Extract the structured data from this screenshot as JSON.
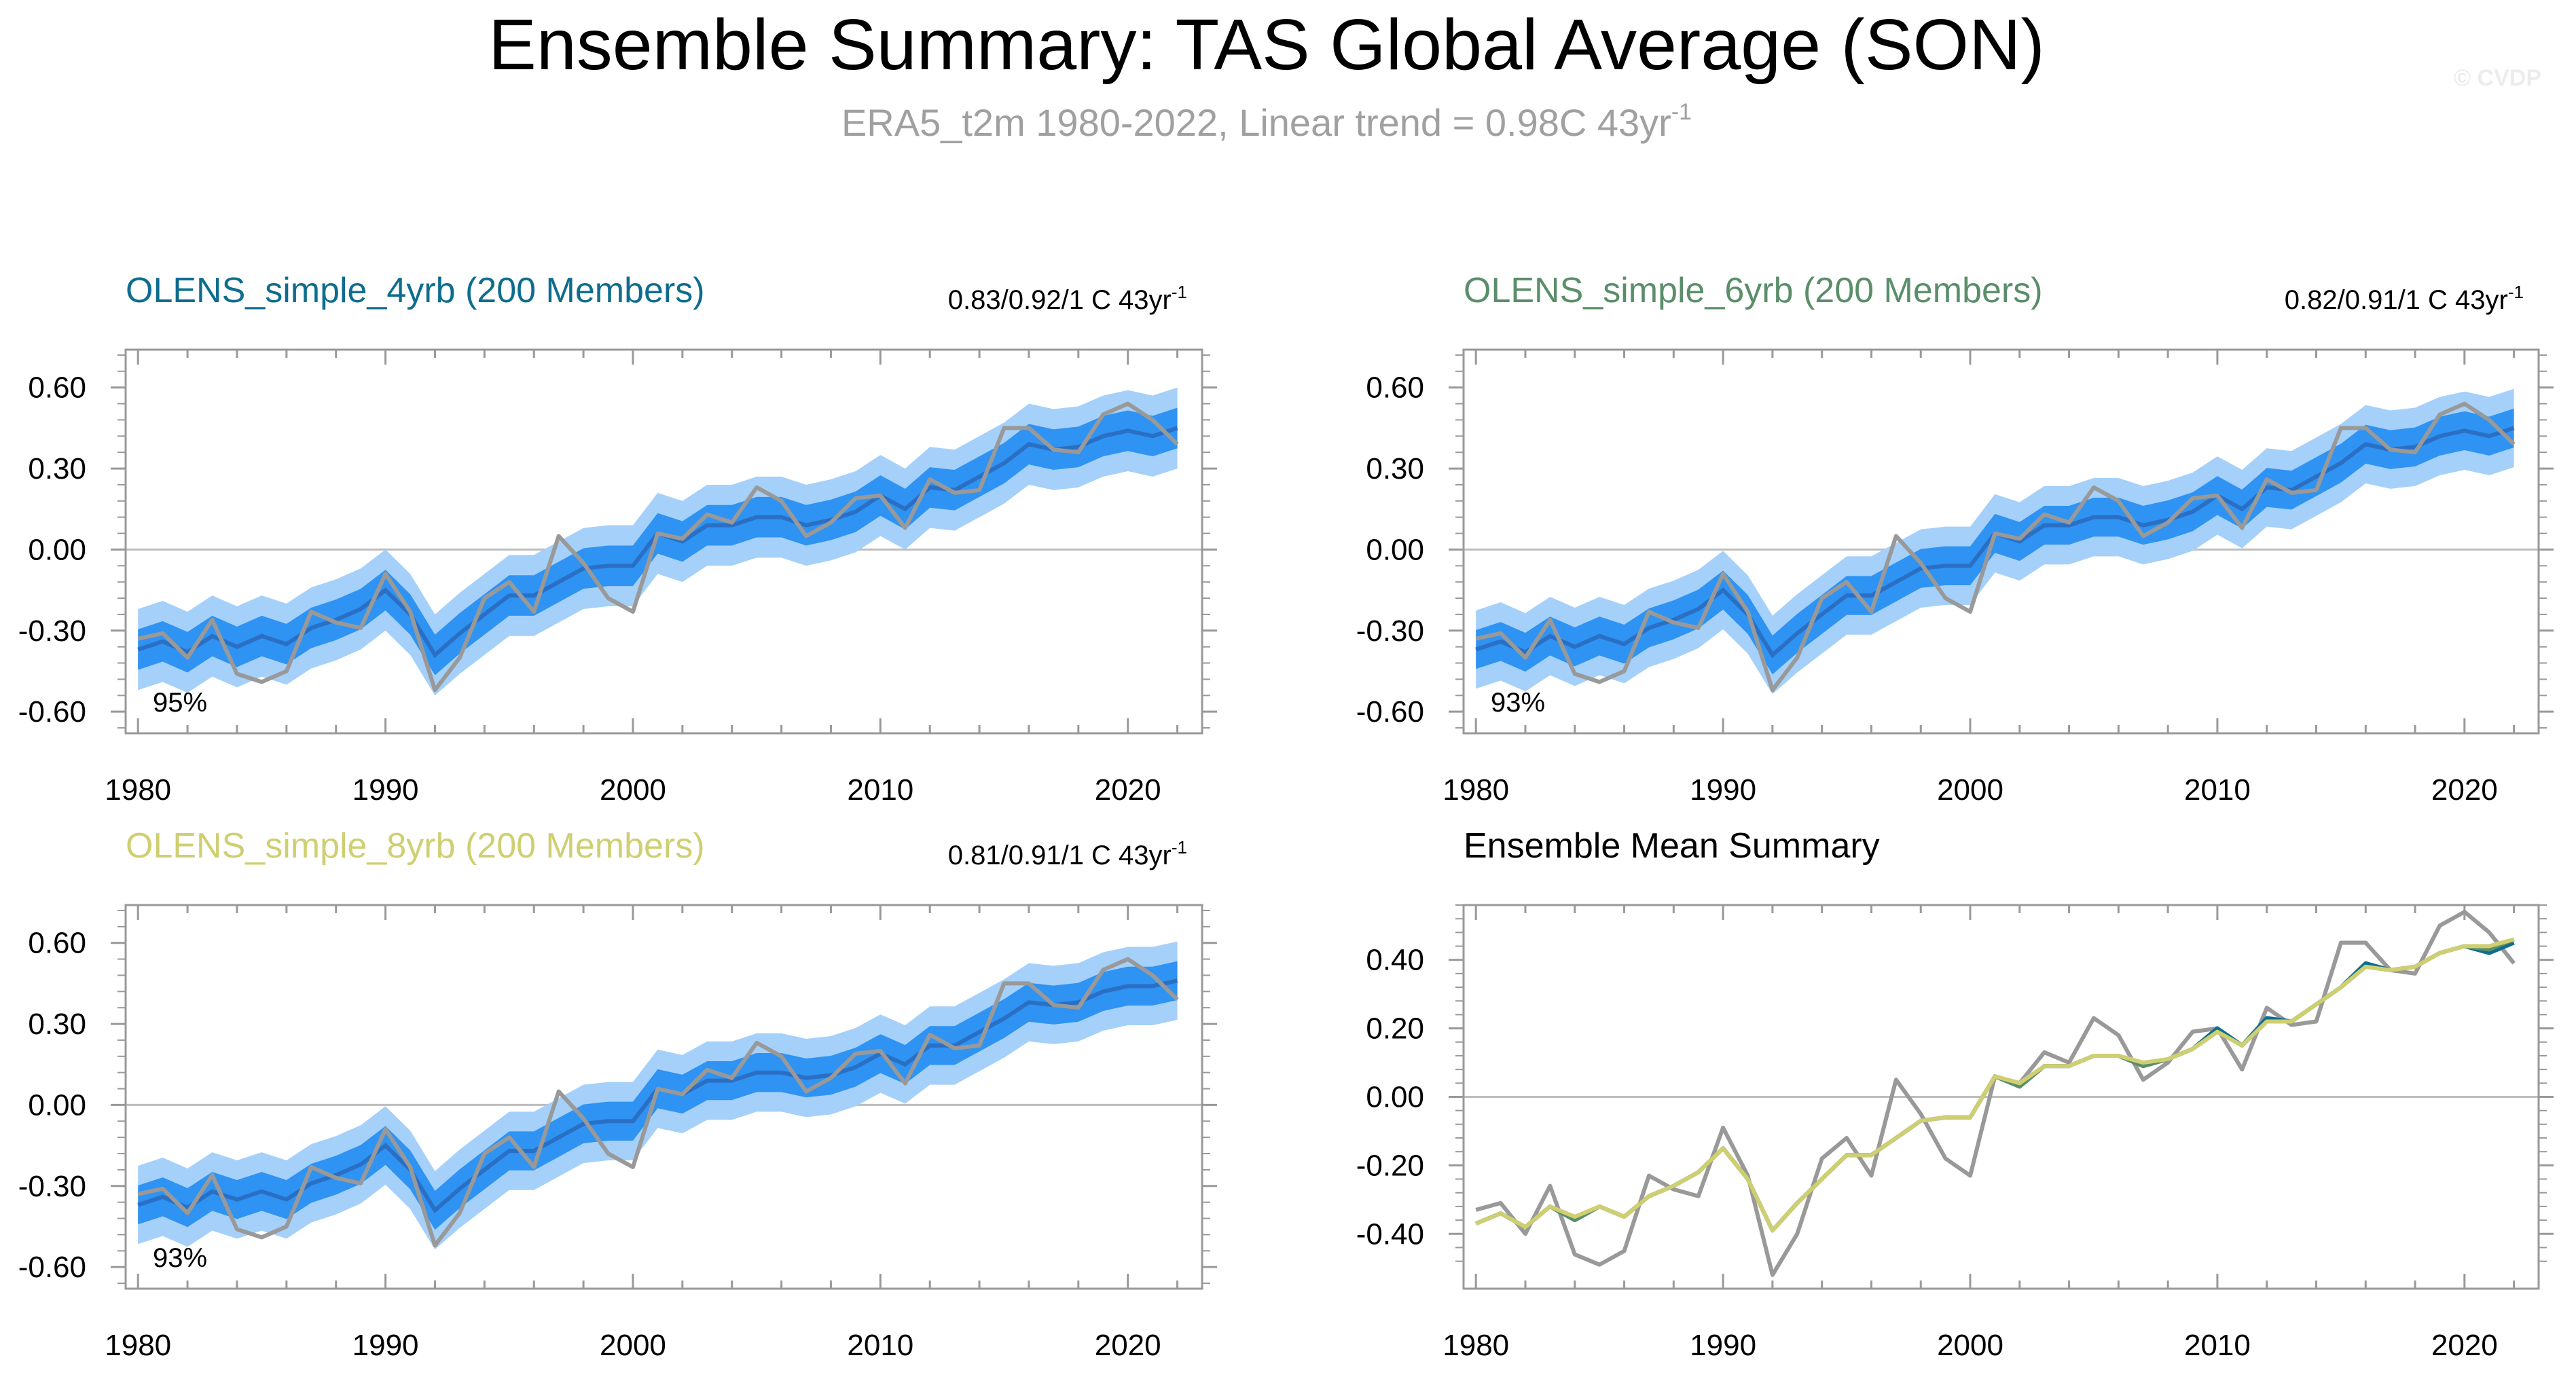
{
  "figure": {
    "title": "Ensemble Summary: TAS Global Average (SON)",
    "subtitle_main": "ERA5_t2m 1980-2022, Linear trend = 0.98C 43yr",
    "subtitle_sup": "-1",
    "watermark": "© CVDP"
  },
  "colors": {
    "band_outer": "#a5d0f9",
    "band_inner": "#2e93f2",
    "ens_mean_line": "#2a6fc4",
    "obs_line": "#999999",
    "zero_line": "#bdbdbd",
    "title_4yrb": "#0e6d8e",
    "title_6yrb": "#5a8e6a",
    "title_8yrb": "#cfcf72",
    "subtitle": "#a0a0a0"
  },
  "chart_data": [
    {
      "type": "area",
      "title": "OLENS_simple_4yrb (200 Members)",
      "trend_label": "0.83/0.92/1 C 43yr",
      "trend_sup": "-1",
      "coverage_label": "95%",
      "x": [
        1980,
        1981,
        1982,
        1983,
        1984,
        1985,
        1986,
        1987,
        1988,
        1989,
        1990,
        1991,
        1992,
        1993,
        1994,
        1995,
        1996,
        1997,
        1998,
        1999,
        2000,
        2001,
        2002,
        2003,
        2004,
        2005,
        2006,
        2007,
        2008,
        2009,
        2010,
        2011,
        2012,
        2013,
        2014,
        2015,
        2016,
        2017,
        2018,
        2019,
        2020,
        2021,
        2022
      ],
      "xlim": [
        1979.5,
        2023
      ],
      "ylim": [
        -0.68,
        0.74
      ],
      "yticks": [
        "0.60",
        "0.30",
        "0.00",
        "-0.30",
        "-0.60"
      ],
      "xticks": [
        "1980",
        "1990",
        "2000",
        "2010",
        "2020"
      ],
      "series": [
        {
          "name": "ensemble mean",
          "values": [
            -0.37,
            -0.34,
            -0.38,
            -0.32,
            -0.36,
            -0.32,
            -0.35,
            -0.29,
            -0.26,
            -0.22,
            -0.15,
            -0.24,
            -0.39,
            -0.31,
            -0.24,
            -0.17,
            -0.17,
            -0.12,
            -0.07,
            -0.06,
            -0.06,
            0.06,
            0.03,
            0.09,
            0.09,
            0.12,
            0.12,
            0.09,
            0.11,
            0.14,
            0.2,
            0.15,
            0.23,
            0.22,
            0.27,
            0.32,
            0.39,
            0.37,
            0.38,
            0.42,
            0.44,
            0.42,
            0.45
          ]
        },
        {
          "name": "ERA5_t2m",
          "values": [
            -0.33,
            -0.31,
            -0.4,
            -0.26,
            -0.46,
            -0.49,
            -0.45,
            -0.23,
            -0.27,
            -0.29,
            -0.09,
            -0.23,
            -0.52,
            -0.4,
            -0.18,
            -0.12,
            -0.23,
            0.05,
            -0.05,
            -0.18,
            -0.23,
            0.06,
            0.04,
            0.13,
            0.1,
            0.23,
            0.18,
            0.05,
            0.1,
            0.19,
            0.2,
            0.08,
            0.26,
            0.21,
            0.22,
            0.45,
            0.45,
            0.37,
            0.36,
            0.5,
            0.54,
            0.48,
            0.39
          ]
        }
      ],
      "band_outer_halfwidth": 0.15,
      "band_inner_halfwidth": 0.075
    },
    {
      "type": "area",
      "title": "OLENS_simple_6yrb (200 Members)",
      "trend_label": "0.82/0.91/1 C 43yr",
      "trend_sup": "-1",
      "coverage_label": "93%",
      "x": [
        1980,
        1981,
        1982,
        1983,
        1984,
        1985,
        1986,
        1987,
        1988,
        1989,
        1990,
        1991,
        1992,
        1993,
        1994,
        1995,
        1996,
        1997,
        1998,
        1999,
        2000,
        2001,
        2002,
        2003,
        2004,
        2005,
        2006,
        2007,
        2008,
        2009,
        2010,
        2011,
        2012,
        2013,
        2014,
        2015,
        2016,
        2017,
        2018,
        2019,
        2020,
        2021,
        2022
      ],
      "xlim": [
        1979.5,
        2023
      ],
      "ylim": [
        -0.68,
        0.74
      ],
      "yticks": [
        "0.60",
        "0.30",
        "0.00",
        "-0.30",
        "-0.60"
      ],
      "xticks": [
        "1980",
        "1990",
        "2000",
        "2010",
        "2020"
      ],
      "series": [
        {
          "name": "ensemble mean",
          "values": [
            -0.37,
            -0.34,
            -0.38,
            -0.32,
            -0.36,
            -0.32,
            -0.35,
            -0.29,
            -0.26,
            -0.22,
            -0.15,
            -0.24,
            -0.39,
            -0.31,
            -0.24,
            -0.17,
            -0.17,
            -0.12,
            -0.07,
            -0.06,
            -0.06,
            0.06,
            0.03,
            0.09,
            0.09,
            0.12,
            0.12,
            0.09,
            0.11,
            0.14,
            0.2,
            0.15,
            0.23,
            0.22,
            0.27,
            0.32,
            0.39,
            0.37,
            0.38,
            0.42,
            0.44,
            0.42,
            0.45
          ]
        },
        {
          "name": "ERA5_t2m",
          "values": [
            -0.33,
            -0.31,
            -0.4,
            -0.26,
            -0.46,
            -0.49,
            -0.45,
            -0.23,
            -0.27,
            -0.29,
            -0.09,
            -0.23,
            -0.52,
            -0.4,
            -0.18,
            -0.12,
            -0.23,
            0.05,
            -0.05,
            -0.18,
            -0.23,
            0.06,
            0.04,
            0.13,
            0.1,
            0.23,
            0.18,
            0.05,
            0.1,
            0.19,
            0.2,
            0.08,
            0.26,
            0.21,
            0.22,
            0.45,
            0.45,
            0.37,
            0.36,
            0.5,
            0.54,
            0.48,
            0.39
          ]
        }
      ],
      "band_outer_halfwidth": 0.145,
      "band_inner_halfwidth": 0.072
    },
    {
      "type": "area",
      "title": "OLENS_simple_8yrb (200 Members)",
      "trend_label": "0.81/0.91/1 C 43yr",
      "trend_sup": "-1",
      "coverage_label": "93%",
      "x": [
        1980,
        1981,
        1982,
        1983,
        1984,
        1985,
        1986,
        1987,
        1988,
        1989,
        1990,
        1991,
        1992,
        1993,
        1994,
        1995,
        1996,
        1997,
        1998,
        1999,
        2000,
        2001,
        2002,
        2003,
        2004,
        2005,
        2006,
        2007,
        2008,
        2009,
        2010,
        2011,
        2012,
        2013,
        2014,
        2015,
        2016,
        2017,
        2018,
        2019,
        2020,
        2021,
        2022
      ],
      "xlim": [
        1979.5,
        2023
      ],
      "ylim": [
        -0.68,
        0.74
      ],
      "yticks": [
        "0.60",
        "0.30",
        "0.00",
        "-0.30",
        "-0.60"
      ],
      "xticks": [
        "1980",
        "1990",
        "2000",
        "2010",
        "2020"
      ],
      "series": [
        {
          "name": "ensemble mean",
          "values": [
            -0.37,
            -0.34,
            -0.38,
            -0.32,
            -0.35,
            -0.32,
            -0.35,
            -0.29,
            -0.26,
            -0.22,
            -0.15,
            -0.24,
            -0.39,
            -0.31,
            -0.24,
            -0.17,
            -0.17,
            -0.12,
            -0.07,
            -0.06,
            -0.06,
            0.06,
            0.04,
            0.09,
            0.09,
            0.12,
            0.12,
            0.1,
            0.11,
            0.14,
            0.19,
            0.15,
            0.22,
            0.22,
            0.27,
            0.32,
            0.38,
            0.37,
            0.38,
            0.42,
            0.44,
            0.44,
            0.46
          ]
        },
        {
          "name": "ERA5_t2m",
          "values": [
            -0.33,
            -0.31,
            -0.4,
            -0.26,
            -0.46,
            -0.49,
            -0.45,
            -0.23,
            -0.27,
            -0.29,
            -0.09,
            -0.23,
            -0.52,
            -0.4,
            -0.18,
            -0.12,
            -0.23,
            0.05,
            -0.05,
            -0.18,
            -0.23,
            0.06,
            0.04,
            0.13,
            0.1,
            0.23,
            0.18,
            0.05,
            0.1,
            0.19,
            0.2,
            0.08,
            0.26,
            0.21,
            0.22,
            0.45,
            0.45,
            0.37,
            0.36,
            0.5,
            0.54,
            0.48,
            0.39
          ]
        }
      ],
      "band_outer_halfwidth": 0.145,
      "band_inner_halfwidth": 0.072
    },
    {
      "type": "line",
      "title": "Ensemble Mean Summary",
      "x": [
        1980,
        1981,
        1982,
        1983,
        1984,
        1985,
        1986,
        1987,
        1988,
        1989,
        1990,
        1991,
        1992,
        1993,
        1994,
        1995,
        1996,
        1997,
        1998,
        1999,
        2000,
        2001,
        2002,
        2003,
        2004,
        2005,
        2006,
        2007,
        2008,
        2009,
        2010,
        2011,
        2012,
        2013,
        2014,
        2015,
        2016,
        2017,
        2018,
        2019,
        2020,
        2021,
        2022
      ],
      "xlim": [
        1979.5,
        2023
      ],
      "ylim": [
        -0.56,
        0.56
      ],
      "yticks": [
        "0.40",
        "0.20",
        "0.00",
        "-0.20",
        "-0.40"
      ],
      "xticks": [
        "1980",
        "1990",
        "2000",
        "2010",
        "2020"
      ],
      "series": [
        {
          "name": "ERA5_t2m",
          "color": "#999999",
          "values": [
            -0.33,
            -0.31,
            -0.4,
            -0.26,
            -0.46,
            -0.49,
            -0.45,
            -0.23,
            -0.27,
            -0.29,
            -0.09,
            -0.23,
            -0.52,
            -0.4,
            -0.18,
            -0.12,
            -0.23,
            0.05,
            -0.05,
            -0.18,
            -0.23,
            0.06,
            0.04,
            0.13,
            0.1,
            0.23,
            0.18,
            0.05,
            0.1,
            0.19,
            0.2,
            0.08,
            0.26,
            0.21,
            0.22,
            0.45,
            0.45,
            0.37,
            0.36,
            0.5,
            0.54,
            0.48,
            0.39
          ]
        },
        {
          "name": "OLENS_simple_4yrb",
          "color": "#0e6d8e",
          "values": [
            -0.37,
            -0.34,
            -0.38,
            -0.32,
            -0.36,
            -0.32,
            -0.35,
            -0.29,
            -0.26,
            -0.22,
            -0.15,
            -0.24,
            -0.39,
            -0.31,
            -0.24,
            -0.17,
            -0.17,
            -0.12,
            -0.07,
            -0.06,
            -0.06,
            0.06,
            0.03,
            0.09,
            0.09,
            0.12,
            0.12,
            0.09,
            0.11,
            0.14,
            0.2,
            0.15,
            0.23,
            0.22,
            0.27,
            0.32,
            0.39,
            0.37,
            0.38,
            0.42,
            0.44,
            0.42,
            0.45
          ]
        },
        {
          "name": "OLENS_simple_6yrb",
          "color": "#5a8e6a",
          "values": [
            -0.37,
            -0.34,
            -0.38,
            -0.32,
            -0.36,
            -0.32,
            -0.35,
            -0.29,
            -0.26,
            -0.22,
            -0.15,
            -0.24,
            -0.39,
            -0.31,
            -0.24,
            -0.17,
            -0.17,
            -0.12,
            -0.07,
            -0.06,
            -0.06,
            0.06,
            0.03,
            0.09,
            0.09,
            0.12,
            0.12,
            0.09,
            0.11,
            0.14,
            0.19,
            0.15,
            0.22,
            0.22,
            0.27,
            0.32,
            0.38,
            0.37,
            0.38,
            0.42,
            0.44,
            0.43,
            0.46
          ]
        },
        {
          "name": "OLENS_simple_8yrb",
          "color": "#cfcf72",
          "values": [
            -0.37,
            -0.34,
            -0.38,
            -0.32,
            -0.35,
            -0.32,
            -0.35,
            -0.29,
            -0.26,
            -0.22,
            -0.15,
            -0.24,
            -0.39,
            -0.31,
            -0.24,
            -0.17,
            -0.17,
            -0.12,
            -0.07,
            -0.06,
            -0.06,
            0.06,
            0.04,
            0.09,
            0.09,
            0.12,
            0.12,
            0.1,
            0.11,
            0.14,
            0.19,
            0.15,
            0.22,
            0.22,
            0.27,
            0.32,
            0.38,
            0.37,
            0.38,
            0.42,
            0.44,
            0.44,
            0.46
          ]
        }
      ]
    }
  ]
}
